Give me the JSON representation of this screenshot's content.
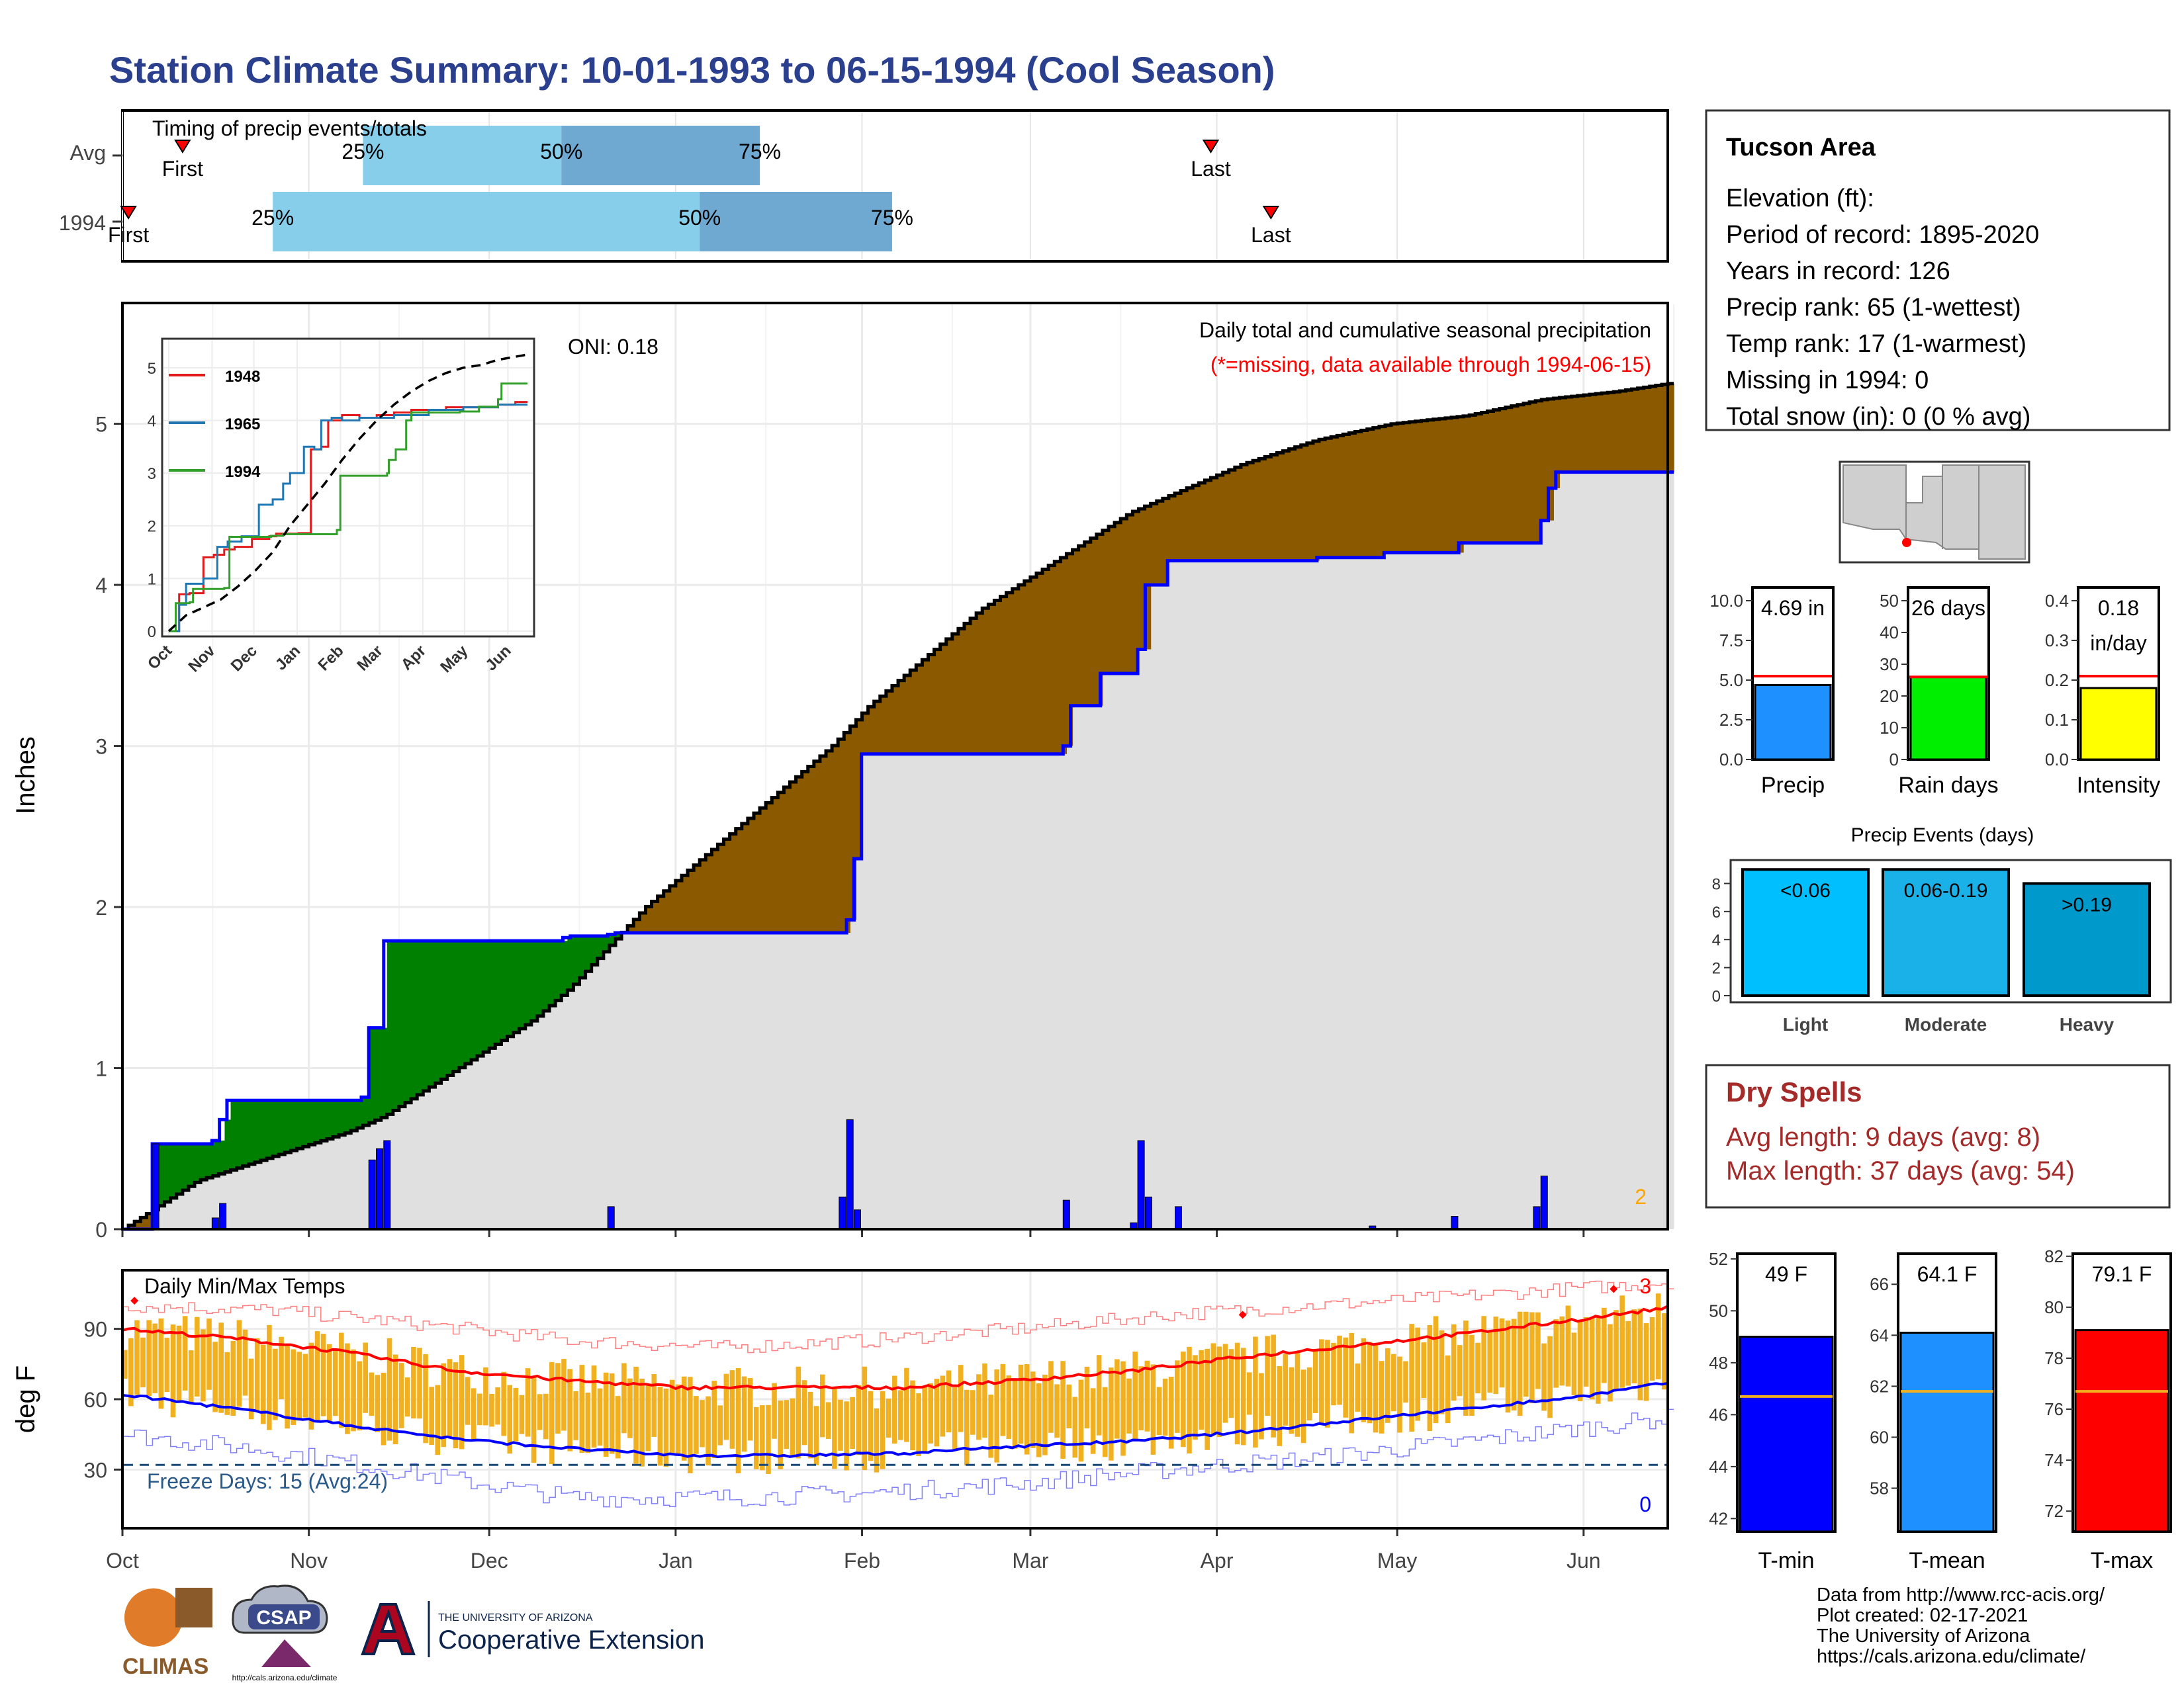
{
  "title": "Station Climate Summary: 10-01-1993 to 06-15-1994 (Cool Season)",
  "chart_data": [
    {
      "id": "timing",
      "type": "bar",
      "title": "Timing of precip events/totals",
      "x_axis": "day of season (0 = Oct 1)",
      "rows": [
        {
          "label": "Avg",
          "first": 10,
          "p25": 40,
          "p50": 73,
          "p75": 106,
          "last": 181
        },
        {
          "label": "1994",
          "first": 1,
          "p25": 25,
          "p50": 96,
          "p75": 128,
          "last": 191
        }
      ],
      "first_label": "First",
      "last_label": "Last",
      "p_labels": [
        "25%",
        "50%",
        "75%"
      ]
    },
    {
      "id": "precip",
      "type": "area",
      "ylabel": "Inches",
      "ylim": [
        0,
        5.75
      ],
      "yticks": [
        0,
        1,
        2,
        3,
        4,
        5
      ],
      "note_title": "Daily total and cumulative seasonal precipitation",
      "note_missing": "(*=missing, data available through 1994-06-15)",
      "oni": "ONI: 0.18",
      "corner_count": "2",
      "avg_cumulative": [
        [
          0,
          0
        ],
        [
          5,
          0.15
        ],
        [
          10,
          0.3
        ],
        [
          20,
          0.45
        ],
        [
          30,
          0.6
        ],
        [
          35,
          0.7
        ],
        [
          40,
          0.85
        ],
        [
          45,
          1.0
        ],
        [
          50,
          1.15
        ],
        [
          55,
          1.3
        ],
        [
          60,
          1.5
        ],
        [
          65,
          1.75
        ],
        [
          70,
          2.0
        ],
        [
          75,
          2.2
        ],
        [
          80,
          2.4
        ],
        [
          85,
          2.6
        ],
        [
          90,
          2.8
        ],
        [
          95,
          3.0
        ],
        [
          100,
          3.25
        ],
        [
          105,
          3.45
        ],
        [
          110,
          3.65
        ],
        [
          115,
          3.85
        ],
        [
          120,
          4.0
        ],
        [
          125,
          4.15
        ],
        [
          130,
          4.3
        ],
        [
          135,
          4.45
        ],
        [
          140,
          4.55
        ],
        [
          145,
          4.65
        ],
        [
          150,
          4.75
        ],
        [
          160,
          4.9
        ],
        [
          170,
          5.0
        ],
        [
          180,
          5.05
        ],
        [
          190,
          5.15
        ],
        [
          200,
          5.2
        ],
        [
          207,
          5.25
        ]
      ],
      "obs_cumulative": [
        [
          0,
          0
        ],
        [
          3,
          0
        ],
        [
          4,
          0.53
        ],
        [
          12,
          0.55
        ],
        [
          13,
          0.68
        ],
        [
          14,
          0.8
        ],
        [
          32,
          0.82
        ],
        [
          33,
          1.25
        ],
        [
          35,
          1.79
        ],
        [
          59,
          1.81
        ],
        [
          60,
          1.82
        ],
        [
          65,
          1.83
        ],
        [
          66,
          1.84
        ],
        [
          97,
          1.92
        ],
        [
          98,
          2.3
        ],
        [
          99,
          2.95
        ],
        [
          126,
          3.0
        ],
        [
          127,
          3.25
        ],
        [
          131,
          3.45
        ],
        [
          136,
          3.6
        ],
        [
          137,
          4.0
        ],
        [
          140,
          4.15
        ],
        [
          160,
          4.17
        ],
        [
          168,
          4.17
        ],
        [
          169,
          4.2
        ],
        [
          178,
          4.2
        ],
        [
          179,
          4.26
        ],
        [
          190,
          4.4
        ],
        [
          191,
          4.6
        ],
        [
          192,
          4.7
        ],
        [
          207,
          4.7
        ]
      ],
      "daily_precip": [
        [
          4,
          0.53
        ],
        [
          12,
          0.07
        ],
        [
          13,
          0.16
        ],
        [
          33,
          0.43
        ],
        [
          34,
          0.5
        ],
        [
          35,
          0.55
        ],
        [
          65,
          0.14
        ],
        [
          96,
          0.2
        ],
        [
          97,
          0.68
        ],
        [
          98,
          0.12
        ],
        [
          126,
          0.18
        ],
        [
          135,
          0.04
        ],
        [
          136,
          0.55
        ],
        [
          137,
          0.2
        ],
        [
          141,
          0.14
        ],
        [
          167,
          0.02
        ],
        [
          178,
          0.08
        ],
        [
          189,
          0.14
        ],
        [
          190,
          0.33
        ]
      ]
    },
    {
      "id": "inset",
      "type": "line",
      "yticks": [
        0,
        1,
        2,
        3,
        4,
        5
      ],
      "months": [
        "Oct",
        "Nov",
        "Dec",
        "Jan",
        "Feb",
        "Mar",
        "Apr",
        "May",
        "Jun"
      ],
      "series": [
        {
          "name": "1948",
          "color": "#e31a1c",
          "values": [
            [
              0,
              0
            ],
            [
              4,
              0
            ],
            [
              6,
              0.7
            ],
            [
              12,
              0.72
            ],
            [
              20,
              1.4
            ],
            [
              26,
              1.45
            ],
            [
              32,
              1.55
            ],
            [
              38,
              1.6
            ],
            [
              48,
              1.75
            ],
            [
              58,
              1.8
            ],
            [
              62,
              1.85
            ],
            [
              75,
              1.86
            ],
            [
              82,
              3.45
            ],
            [
              88,
              3.5
            ],
            [
              92,
              4.0
            ],
            [
              100,
              4.1
            ],
            [
              110,
              4.05
            ],
            [
              120,
              4.1
            ],
            [
              130,
              4.15
            ],
            [
              140,
              4.2
            ],
            [
              160,
              4.25
            ],
            [
              180,
              4.25
            ],
            [
              190,
              4.3
            ],
            [
              200,
              4.35
            ],
            [
              207,
              4.35
            ]
          ]
        },
        {
          "name": "1965",
          "color": "#1f78b4",
          "values": [
            [
              0,
              0
            ],
            [
              5,
              0
            ],
            [
              6,
              0.5
            ],
            [
              10,
              0.9
            ],
            [
              20,
              1.0
            ],
            [
              28,
              1.6
            ],
            [
              34,
              1.7
            ],
            [
              42,
              1.8
            ],
            [
              52,
              2.4
            ],
            [
              60,
              2.5
            ],
            [
              66,
              2.8
            ],
            [
              70,
              3.0
            ],
            [
              78,
              3.5
            ],
            [
              84,
              3.45
            ],
            [
              88,
              4.0
            ],
            [
              94,
              4.05
            ],
            [
              100,
              4.0
            ],
            [
              110,
              4.05
            ],
            [
              130,
              4.1
            ],
            [
              150,
              4.2
            ],
            [
              170,
              4.25
            ],
            [
              190,
              4.3
            ],
            [
              207,
              4.3
            ]
          ]
        },
        {
          "name": "1994",
          "color": "#33a02c",
          "values": [
            [
              0,
              0
            ],
            [
              4,
              0.53
            ],
            [
              12,
              0.55
            ],
            [
              14,
              0.8
            ],
            [
              32,
              0.82
            ],
            [
              35,
              1.79
            ],
            [
              59,
              1.81
            ],
            [
              66,
              1.84
            ],
            [
              97,
              1.92
            ],
            [
              99,
              2.95
            ],
            [
              126,
              3.0
            ],
            [
              127,
              3.25
            ],
            [
              131,
              3.45
            ],
            [
              137,
              4.0
            ],
            [
              140,
              4.15
            ],
            [
              168,
              4.17
            ],
            [
              179,
              4.26
            ],
            [
              190,
              4.4
            ],
            [
              192,
              4.7
            ],
            [
              207,
              4.7
            ]
          ]
        }
      ],
      "avg_cumulative": [
        [
          0,
          0
        ],
        [
          10,
          0.3
        ],
        [
          20,
          0.45
        ],
        [
          30,
          0.6
        ],
        [
          40,
          0.85
        ],
        [
          50,
          1.15
        ],
        [
          60,
          1.5
        ],
        [
          70,
          2.0
        ],
        [
          80,
          2.4
        ],
        [
          90,
          2.8
        ],
        [
          100,
          3.25
        ],
        [
          110,
          3.65
        ],
        [
          120,
          4.0
        ],
        [
          130,
          4.3
        ],
        [
          140,
          4.55
        ],
        [
          150,
          4.75
        ],
        [
          160,
          4.9
        ],
        [
          170,
          5.0
        ],
        [
          180,
          5.05
        ],
        [
          190,
          5.15
        ],
        [
          207,
          5.25
        ]
      ]
    },
    {
      "id": "temps",
      "type": "line",
      "title": "Daily Min/Max Temps",
      "ylabel": "deg F",
      "ylim": [
        5,
        115
      ],
      "yticks": [
        30,
        60,
        90
      ],
      "freeze_line": 32,
      "freeze_label": "Freeze Days: 15 (Avg:24)",
      "count_top": "3",
      "count_bottom": "0",
      "avg_max": [
        [
          0,
          90
        ],
        [
          15,
          86
        ],
        [
          30,
          80
        ],
        [
          45,
          72
        ],
        [
          60,
          68
        ],
        [
          75,
          65
        ],
        [
          90,
          65
        ],
        [
          105,
          65
        ],
        [
          120,
          68
        ],
        [
          135,
          72
        ],
        [
          150,
          78
        ],
        [
          165,
          83
        ],
        [
          180,
          88
        ],
        [
          195,
          94
        ],
        [
          207,
          99
        ]
      ],
      "avg_min": [
        [
          0,
          62
        ],
        [
          15,
          56
        ],
        [
          30,
          49
        ],
        [
          45,
          43
        ],
        [
          60,
          39
        ],
        [
          75,
          36
        ],
        [
          90,
          36
        ],
        [
          105,
          37
        ],
        [
          120,
          40
        ],
        [
          135,
          42
        ],
        [
          150,
          46
        ],
        [
          165,
          51
        ],
        [
          180,
          56
        ],
        [
          195,
          61
        ],
        [
          207,
          67
        ]
      ],
      "rec_max": [
        [
          0,
          100
        ],
        [
          20,
          98
        ],
        [
          40,
          92
        ],
        [
          60,
          85
        ],
        [
          80,
          82
        ],
        [
          100,
          85
        ],
        [
          120,
          90
        ],
        [
          140,
          96
        ],
        [
          160,
          100
        ],
        [
          180,
          104
        ],
        [
          207,
          110
        ]
      ],
      "rec_min": [
        [
          0,
          45
        ],
        [
          20,
          38
        ],
        [
          40,
          28
        ],
        [
          60,
          18
        ],
        [
          80,
          18
        ],
        [
          100,
          20
        ],
        [
          120,
          24
        ],
        [
          140,
          30
        ],
        [
          160,
          35
        ],
        [
          180,
          42
        ],
        [
          207,
          52
        ]
      ],
      "months": [
        "Oct",
        "Nov",
        "Dec",
        "Jan",
        "Feb",
        "Mar",
        "Apr",
        "May",
        "Jun"
      ],
      "month_days": [
        0,
        31,
        61,
        92,
        123,
        151,
        182,
        212,
        243
      ]
    },
    {
      "id": "precip-summary",
      "type": "bar",
      "bars": [
        {
          "category": "Precip",
          "value": 4.69,
          "avg": 5.25,
          "label": "4.69 in",
          "color": "#1e90ff",
          "ymax": 10,
          "ticks": [
            "0.0",
            "2.5",
            "5.0",
            "7.5",
            "10.0"
          ]
        },
        {
          "category": "Rain days",
          "value": 26,
          "avg": 26,
          "label": "26 days",
          "color": "#00ee00",
          "ymax": 50,
          "ticks": [
            "0",
            "10",
            "20",
            "30",
            "40",
            "50"
          ]
        },
        {
          "category": "Intensity",
          "value": 0.18,
          "avg": 0.21,
          "label": "0.18",
          "label2": "in/day",
          "color": "#ffff00",
          "ymax": 0.4,
          "ticks": [
            "0.0",
            "0.1",
            "0.2",
            "0.3",
            "0.4"
          ]
        }
      ]
    },
    {
      "id": "precip-events",
      "type": "bar",
      "title": "Precip Events (days)",
      "categories": [
        "Light",
        "Moderate",
        "Heavy"
      ],
      "labels": [
        "<0.06",
        "0.06-0.19",
        ">0.19"
      ],
      "values": [
        9,
        9,
        8
      ],
      "yticks": [
        0,
        2,
        4,
        6,
        8
      ],
      "colors": [
        "#00bfff",
        "#1ab0e8",
        "#0099cc"
      ]
    },
    {
      "id": "temp-summary",
      "type": "bar",
      "bars": [
        {
          "category": "T-min",
          "value": 49,
          "avg": 46.7,
          "label": "49 F",
          "color": "#0000ff",
          "ymin": 41.5,
          "ymax": 52.2,
          "ticks": [
            42,
            44,
            46,
            48,
            50,
            52
          ]
        },
        {
          "category": "T-mean",
          "value": 64.1,
          "avg": 61.8,
          "label": "64.1 F",
          "color": "#1e90ff",
          "ymin": 56.3,
          "ymax": 67.2,
          "ticks": [
            58,
            60,
            62,
            64,
            66
          ]
        },
        {
          "category": "T-max",
          "value": 79.1,
          "avg": 76.7,
          "label": "79.1 F",
          "color": "#ff0000",
          "ymin": 71.2,
          "ymax": 82.1,
          "ticks": [
            72,
            74,
            76,
            78,
            80,
            82
          ]
        }
      ]
    }
  ],
  "info": {
    "station": "Tucson Area",
    "lines": [
      "Elevation (ft):",
      "Period of record: 1895-2020",
      "Years in record: 126",
      "Precip rank: 65 (1-wettest)",
      "Temp rank: 17 (1-warmest)",
      "Missing in 1994: 0",
      "Total snow (in): 0 (0 % avg)"
    ]
  },
  "dry_spells": {
    "title": "Dry Spells",
    "avg_line": "Avg length: 9 days (avg: 8)",
    "max_line": "Max length: 37 days (avg: 54)"
  },
  "footer": {
    "lines": [
      "Data from http://www.rcc-acis.org/",
      "Plot created: 02-17-2021",
      "The University of Arizona",
      "https://cals.arizona.edu/climate/"
    ],
    "logo_climas": "CLIMAS",
    "logo_csap": "CSAP",
    "logo_csap_url": "http://cals.arizona.edu/climate",
    "logo_ua_line1": "THE UNIVERSITY OF ARIZONA",
    "logo_ua_line2": "Cooperative Extension"
  },
  "colors": {
    "title": "#2b3f8f",
    "deficit": "#8b5a00",
    "surplus": "#008000",
    "observed": "#0000ff",
    "temp_bar": "#f0b020",
    "dry_spell": "#a52a2a"
  }
}
